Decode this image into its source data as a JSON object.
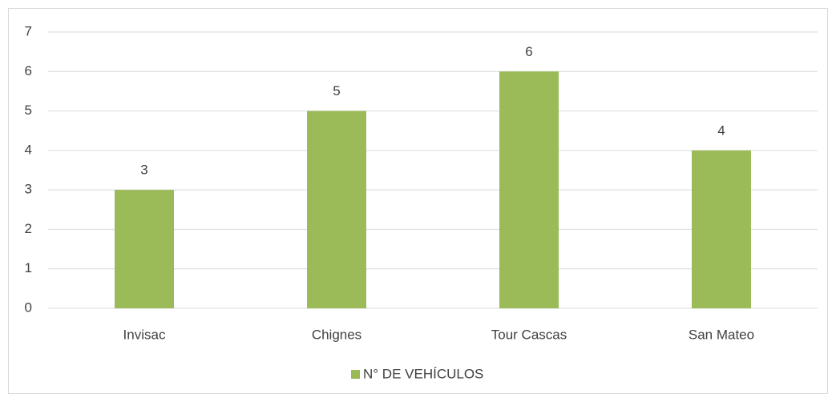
{
  "chart_data": {
    "type": "bar",
    "categories": [
      "Invisac",
      "Chignes",
      "Tour Cascas",
      "San Mateo"
    ],
    "series": [
      {
        "name": "N° DE VEHÍCULOS",
        "color": "#9bbb59",
        "values": [
          3,
          5,
          6,
          4
        ]
      }
    ],
    "ylim": [
      0,
      7
    ],
    "yticks": [
      0,
      1,
      2,
      3,
      4,
      5,
      6,
      7
    ],
    "grid": true,
    "legend": "bottom"
  }
}
